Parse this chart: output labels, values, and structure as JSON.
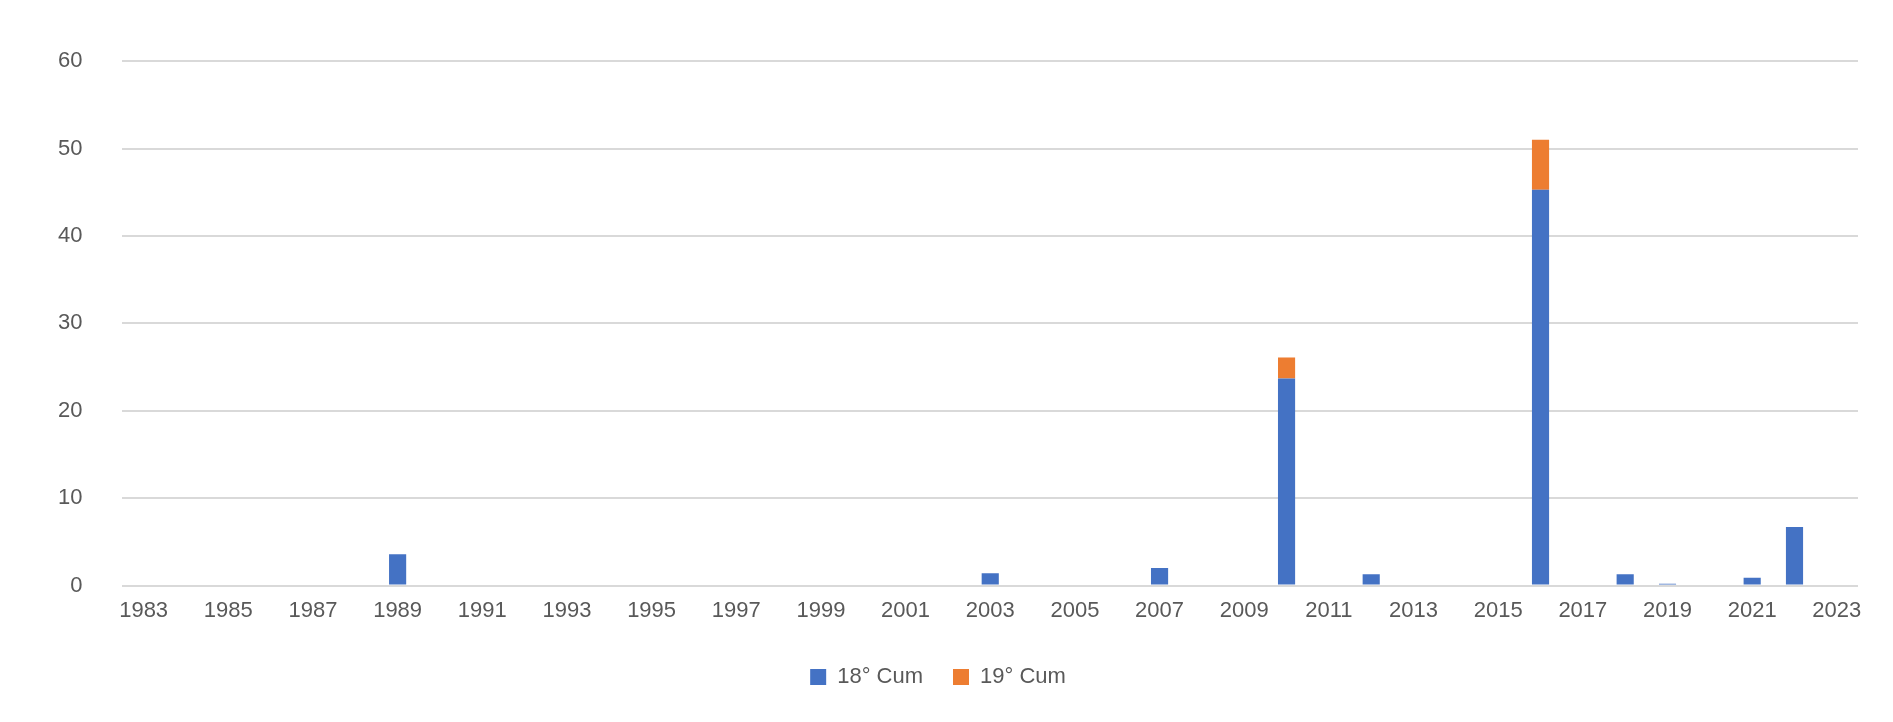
{
  "chart_data": {
    "type": "bar",
    "stacked": true,
    "categories": [
      "1983",
      null,
      "1985",
      null,
      "1987",
      null,
      "1989",
      null,
      "1991",
      null,
      "1993",
      null,
      "1995",
      null,
      "1997",
      null,
      "1999",
      null,
      "2001",
      null,
      "2003",
      null,
      "2005",
      null,
      "2007",
      null,
      "2009",
      null,
      "2011",
      null,
      "2013",
      null,
      "2015",
      null,
      "2017",
      null,
      "2019",
      null,
      "2021",
      null,
      "2023"
    ],
    "series": [
      {
        "name": "18° Cum",
        "color": "#4472c4",
        "values": [
          null,
          null,
          null,
          null,
          null,
          null,
          3.6,
          null,
          null,
          null,
          null,
          null,
          null,
          null,
          null,
          null,
          null,
          null,
          null,
          null,
          1.4,
          null,
          null,
          null,
          2.0,
          null,
          null,
          23.7,
          null,
          1.3,
          null,
          null,
          null,
          45.3,
          null,
          1.3,
          0.2,
          null,
          0.9,
          6.7,
          null
        ]
      },
      {
        "name": "19° Cum",
        "color": "#ed7d31",
        "values": [
          null,
          null,
          null,
          null,
          null,
          null,
          null,
          null,
          null,
          null,
          null,
          null,
          null,
          null,
          null,
          null,
          null,
          null,
          null,
          null,
          null,
          null,
          null,
          null,
          null,
          null,
          null,
          2.4,
          null,
          null,
          null,
          null,
          null,
          5.7,
          null,
          null,
          null,
          null,
          null,
          null,
          null
        ]
      }
    ],
    "ylim": [
      0,
      60
    ],
    "yticks": [
      0,
      10,
      20,
      30,
      40,
      50,
      60
    ],
    "grid": "y",
    "legend": "bottom"
  }
}
